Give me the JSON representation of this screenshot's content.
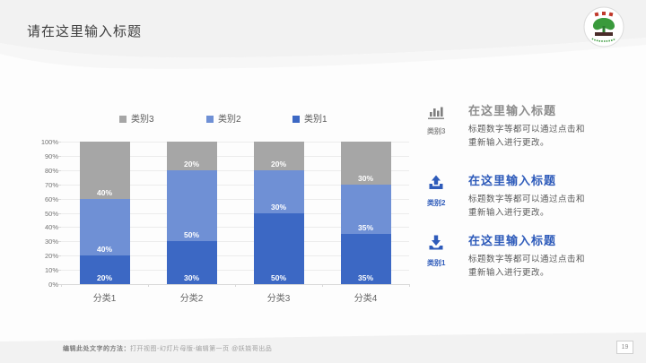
{
  "slide": {
    "title": "请在这里输入标题",
    "page_number": "19",
    "footer_bold": "编辑此处文字的方法：",
    "footer_rest": "打开视图-幻灯片母版-编辑第一页 @妖娆哥出品"
  },
  "colors": {
    "series1_blue": "#3c68c4",
    "series2_blue": "#6f90d5",
    "series3_gray": "#a6a6a6",
    "accent_blue": "#2e5bba",
    "accent_gray": "#8c8c8c",
    "header_band": "#f2f2f2",
    "logo_green": "#3a9a3c",
    "logo_red": "#c0392b"
  },
  "chart_data": {
    "type": "bar",
    "subtype": "stacked-100-percent",
    "categories": [
      "分类1",
      "分类2",
      "分类3",
      "分类4"
    ],
    "series": [
      {
        "name": "类别1",
        "color": "#3c68c4",
        "values": [
          20,
          30,
          50,
          35
        ]
      },
      {
        "name": "类别2",
        "color": "#6f90d5",
        "values": [
          40,
          50,
          30,
          35
        ]
      },
      {
        "name": "类别3",
        "color": "#a6a6a6",
        "values": [
          40,
          20,
          20,
          30
        ]
      }
    ],
    "legend": [
      {
        "label": "类别3",
        "color": "#a6a6a6"
      },
      {
        "label": "类别2",
        "color": "#6f90d5"
      },
      {
        "label": "类别1",
        "color": "#3c68c4"
      }
    ],
    "ylim": [
      0,
      100
    ],
    "yticks": [
      "0%",
      "10%",
      "20%",
      "30%",
      "40%",
      "50%",
      "60%",
      "70%",
      "80%",
      "90%",
      "100%"
    ],
    "grid": true,
    "legend_position": "top",
    "data_labels": "inside-end, percent, white bold"
  },
  "info_items": [
    {
      "icon": "bar-chart-icon",
      "category": "类别3",
      "title": "在这里输入标题",
      "body": "标题数字等都可以通过点击和重新输入进行更改。",
      "accent": "#8c8c8c"
    },
    {
      "icon": "upload-icon",
      "category": "类别2",
      "title": "在这里输入标题",
      "body": "标题数字等都可以通过点击和重新输入进行更改。",
      "accent": "#2e5bba"
    },
    {
      "icon": "download-icon",
      "category": "类别1",
      "title": "在这里输入标题",
      "body": "标题数字等都可以通过点击和重新输入进行更改。",
      "accent": "#2e5bba"
    }
  ]
}
